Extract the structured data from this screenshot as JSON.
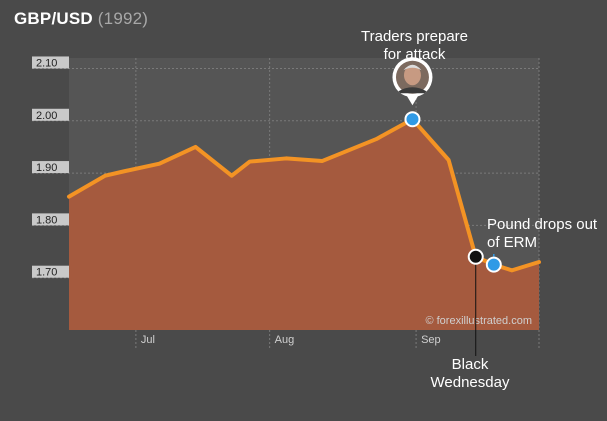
{
  "title": "GBP/USD",
  "year": "(1992)",
  "colors": {
    "background": "#4a4a4a",
    "plot_background": "#555555",
    "area_fill": "#a55a3e",
    "line": "#f39324",
    "marker_blue": "#2f9ae6",
    "marker_black": "#111111",
    "y_label_box": "#c9c9c9"
  },
  "annotations": {
    "attack": "Traders prepare for attack",
    "erm": "Pound drops out of ERM",
    "black_wednesday": "Black Wednesday"
  },
  "watermark": "© forexillustrated.com",
  "portrait_icon": "george-soros-portrait-icon",
  "chart_data": {
    "type": "area",
    "title": "GBP/USD (1992)",
    "xlabel": "",
    "ylabel": "",
    "x_ticks": [
      "Jul",
      "Aug",
      "Sep"
    ],
    "x_tick_weeks": [
      3.7,
      11.1,
      19.2
    ],
    "y_ticks": [
      "2.10",
      "2.00",
      "1.90",
      "1.80",
      "1.70"
    ],
    "y_tick_values": [
      2.1,
      2.0,
      1.9,
      1.8,
      1.7
    ],
    "ylim": [
      1.6,
      2.12
    ],
    "xlim": [
      0,
      26
    ],
    "grid": true,
    "points": [
      {
        "x": 0,
        "y": 1.855
      },
      {
        "x": 2,
        "y": 1.895
      },
      {
        "x": 3,
        "y": 1.903
      },
      {
        "x": 5,
        "y": 1.918
      },
      {
        "x": 7,
        "y": 1.95
      },
      {
        "x": 9,
        "y": 1.895
      },
      {
        "x": 10,
        "y": 1.922
      },
      {
        "x": 12,
        "y": 1.928
      },
      {
        "x": 14,
        "y": 1.923
      },
      {
        "x": 17,
        "y": 1.965
      },
      {
        "x": 19,
        "y": 2.003
      },
      {
        "x": 21,
        "y": 1.925
      },
      {
        "x": 22.5,
        "y": 1.74
      },
      {
        "x": 23.5,
        "y": 1.725
      },
      {
        "x": 24.5,
        "y": 1.714
      },
      {
        "x": 26,
        "y": 1.73
      }
    ],
    "markers": [
      {
        "name": "attack",
        "x": 19,
        "y": 2.003,
        "color": "blue"
      },
      {
        "name": "black-wednesday",
        "x": 22.5,
        "y": 1.74,
        "color": "black"
      },
      {
        "name": "erm-exit",
        "x": 23.5,
        "y": 1.725,
        "color": "blue"
      }
    ]
  }
}
